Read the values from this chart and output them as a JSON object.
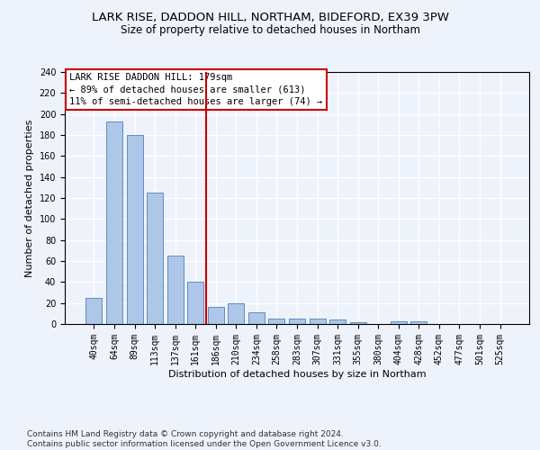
{
  "title1": "LARK RISE, DADDON HILL, NORTHAM, BIDEFORD, EX39 3PW",
  "title2": "Size of property relative to detached houses in Northam",
  "xlabel": "Distribution of detached houses by size in Northam",
  "ylabel": "Number of detached properties",
  "categories": [
    "40sqm",
    "64sqm",
    "89sqm",
    "113sqm",
    "137sqm",
    "161sqm",
    "186sqm",
    "210sqm",
    "234sqm",
    "258sqm",
    "283sqm",
    "307sqm",
    "331sqm",
    "355sqm",
    "380sqm",
    "404sqm",
    "428sqm",
    "452sqm",
    "477sqm",
    "501sqm",
    "525sqm"
  ],
  "values": [
    25,
    193,
    180,
    125,
    65,
    40,
    16,
    20,
    11,
    5,
    5,
    5,
    4,
    2,
    0,
    3,
    3,
    0,
    0,
    0,
    0
  ],
  "bar_color": "#aec6e8",
  "bar_edge_color": "#5a8fc2",
  "vline_x": 5.5,
  "vline_color": "#cc0000",
  "annotation_text": "LARK RISE DADDON HILL: 179sqm\n← 89% of detached houses are smaller (613)\n11% of semi-detached houses are larger (74) →",
  "annotation_fontsize": 7.5,
  "box_edge_color": "#cc0000",
  "ylim": [
    0,
    240
  ],
  "yticks": [
    0,
    20,
    40,
    60,
    80,
    100,
    120,
    140,
    160,
    180,
    200,
    220,
    240
  ],
  "footnote": "Contains HM Land Registry data © Crown copyright and database right 2024.\nContains public sector information licensed under the Open Government Licence v3.0.",
  "background_color": "#eef2fa",
  "grid_color": "#ffffff",
  "title1_fontsize": 9.5,
  "title2_fontsize": 8.5,
  "xlabel_fontsize": 8,
  "ylabel_fontsize": 8,
  "tick_fontsize": 7,
  "footnote_fontsize": 6.5
}
